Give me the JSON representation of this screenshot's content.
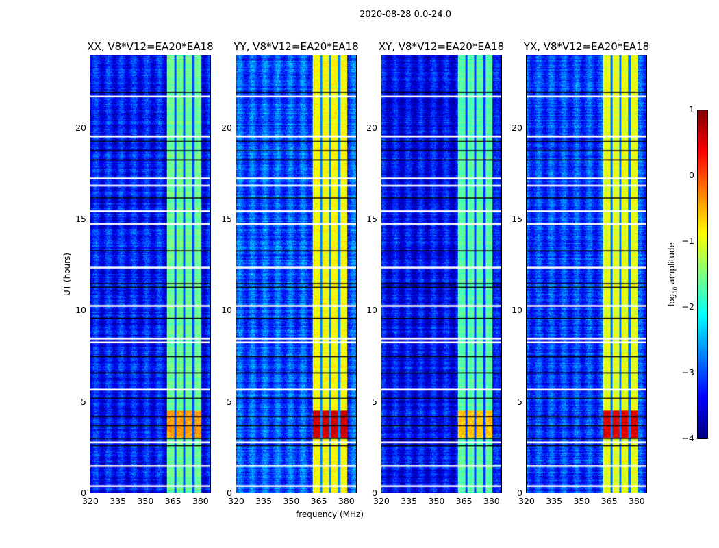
{
  "suptitle": "2020-08-28 0.0-24.0",
  "chart_data": {
    "type": "heatmap",
    "xlabel": "frequency (MHz)",
    "ylabel": "UT (hours)",
    "xlim": [
      320,
      386
    ],
    "ylim": [
      0,
      24
    ],
    "xticks": [
      "320",
      "335",
      "350",
      "365",
      "380"
    ],
    "xtick_values": [
      320,
      335,
      350,
      365,
      380
    ],
    "yticks": [
      "0",
      "5",
      "10",
      "15",
      "20"
    ],
    "ytick_values": [
      0,
      5,
      10,
      15,
      20
    ],
    "colorbar": {
      "label": "log10 amplitude",
      "label_main": "log",
      "label_sub": "10",
      "label_rest": " amplitude",
      "range": [
        -4,
        1
      ],
      "ticks": [
        "1",
        "0",
        "−1",
        "−2",
        "−3",
        "−4"
      ],
      "tick_values": [
        1,
        0,
        -1,
        -2,
        -3,
        -4
      ],
      "colormap": "jet"
    },
    "flagged_times_white": [
      0.4,
      1.5,
      2.8,
      5.7,
      8.3,
      8.5,
      10.3,
      12.4,
      14.8,
      15.5,
      16.9,
      17.3,
      19.6,
      21.8
    ],
    "dark_times": [
      2.6,
      3.0,
      3.7,
      4.2,
      5.2,
      6.6,
      7.5,
      9.6,
      11.3,
      11.5,
      13.3,
      16.2,
      18.3,
      18.8,
      19.3,
      22.0
    ],
    "bright_band_mhz": [
      362,
      381
    ],
    "band_gaps_mhz": [
      366.5,
      371.5,
      376.5
    ],
    "panels": [
      {
        "title": "XX, V8*V12=EA20*EA18",
        "background_log_amp": -3.3,
        "band_log_amp": -1.6,
        "peak_log_amp": -0.4,
        "peak_hours": [
          3,
          4.5
        ]
      },
      {
        "title": "YY, V8*V12=EA20*EA18",
        "background_log_amp": -3.0,
        "band_log_amp": -0.9,
        "peak_log_amp": 0.6,
        "peak_hours": [
          3,
          4.5
        ]
      },
      {
        "title": "XY, V8*V12=EA20*EA18",
        "background_log_amp": -3.4,
        "band_log_amp": -1.7,
        "peak_log_amp": -0.6,
        "peak_hours": [
          3,
          4.5
        ]
      },
      {
        "title": "YX, V8*V12=EA20*EA18",
        "background_log_amp": -3.1,
        "band_log_amp": -1.0,
        "peak_log_amp": 0.5,
        "peak_hours": [
          3,
          4.5
        ]
      }
    ]
  }
}
